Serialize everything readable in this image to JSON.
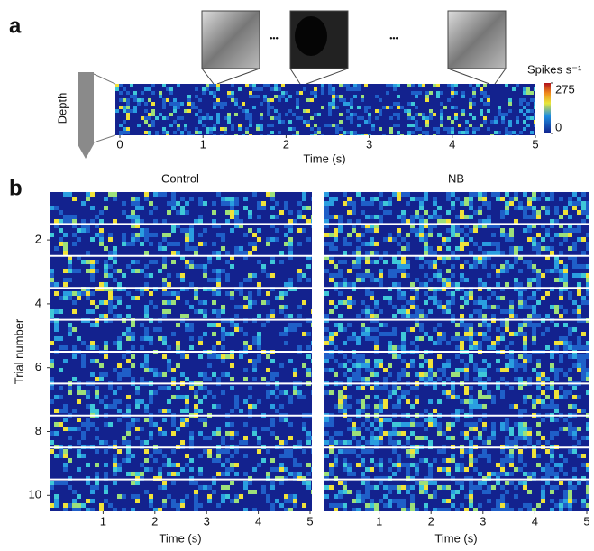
{
  "panel_a": {
    "label": "a",
    "ylabel": "Depth",
    "xlabel": "Time (s)",
    "xlim": [
      0,
      5
    ],
    "xticks": [
      0,
      1,
      2,
      3,
      4,
      5
    ],
    "colorbar": {
      "title": "Spikes s⁻¹",
      "lim": [
        0,
        275
      ],
      "ticks": [
        275,
        0
      ]
    },
    "ellipsis": [
      "•••",
      "•••"
    ]
  },
  "panel_b": {
    "label": "b",
    "ylabel": "Trial number",
    "ylim": [
      0.5,
      10.5
    ],
    "yticks": [
      2,
      4,
      6,
      8,
      10
    ],
    "panels": [
      {
        "title": "Control",
        "xlabel": "Time (s)",
        "xlim": [
          0,
          5
        ],
        "xticks": [
          1,
          2,
          3,
          4,
          5
        ]
      },
      {
        "title": "NB",
        "xlabel": "Time (s)",
        "xlim": [
          0,
          5
        ],
        "xticks": [
          1,
          2,
          3,
          4,
          5
        ]
      }
    ]
  }
}
